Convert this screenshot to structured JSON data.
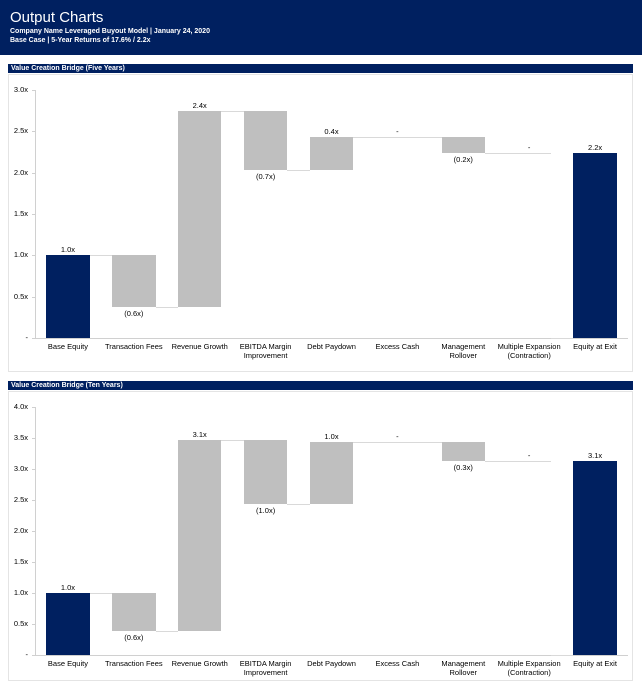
{
  "header": {
    "title": "Output Charts",
    "subtitle": "Company Name Leveraged Buyout Model | January 24, 2020",
    "subtitle2": "Base Case | 5-Year Returns of 17.6% / 2.2x"
  },
  "chart_data": [
    {
      "type": "waterfall",
      "title": "Value Creation Bridge (Five Years)",
      "categories": [
        "Base Equity",
        "Transaction Fees",
        "Revenue Growth",
        "EBITDA Margin Improvement",
        "Debt Paydown",
        "Excess Cash",
        "Management Rollover",
        "Multiple Expansion (Contraction)",
        "Equity at Exit"
      ],
      "measure": [
        "absolute",
        "relative",
        "relative",
        "relative",
        "relative",
        "relative",
        "relative",
        "relative",
        "total"
      ],
      "values": [
        1.0,
        -0.62,
        2.37,
        -0.72,
        0.4,
        0,
        -0.19,
        0,
        2.24
      ],
      "value_labels": [
        "1.0x",
        "(0.6x)",
        "2.4x",
        "(0.7x)",
        "0.4x",
        "-",
        "(0.2x)",
        "-",
        "2.2x"
      ],
      "colors": [
        "#002060",
        "#bfbfbf",
        "#bfbfbf",
        "#bfbfbf",
        "#bfbfbf",
        "#bfbfbf",
        "#bfbfbf",
        "#bfbfbf",
        "#002060"
      ],
      "ylim": [
        0,
        3
      ],
      "yticks": [
        {
          "value": 0,
          "label": "-"
        },
        {
          "value": 0.5,
          "label": "0.5x"
        },
        {
          "value": 1,
          "label": "1.0x"
        },
        {
          "value": 1.5,
          "label": "1.5x"
        },
        {
          "value": 2,
          "label": "2.0x"
        },
        {
          "value": 2.5,
          "label": "2.5x"
        },
        {
          "value": 3,
          "label": "3.0x"
        }
      ]
    },
    {
      "type": "waterfall",
      "title": "Value Creation Bridge (Ten Years)",
      "categories": [
        "Base Equity",
        "Transaction Fees",
        "Revenue Growth",
        "EBITDA Margin Improvement",
        "Debt Paydown",
        "Excess Cash",
        "Management Rollover",
        "Multiple Expansion (Contraction)",
        "Equity at Exit"
      ],
      "measure": [
        "absolute",
        "relative",
        "relative",
        "relative",
        "relative",
        "relative",
        "relative",
        "relative",
        "total"
      ],
      "values": [
        1.0,
        -0.62,
        3.08,
        -1.02,
        1.0,
        0,
        -0.31,
        0,
        3.13
      ],
      "value_labels": [
        "1.0x",
        "(0.6x)",
        "3.1x",
        "(1.0x)",
        "1.0x",
        "-",
        "(0.3x)",
        "-",
        "3.1x"
      ],
      "colors": [
        "#002060",
        "#bfbfbf",
        "#bfbfbf",
        "#bfbfbf",
        "#bfbfbf",
        "#bfbfbf",
        "#bfbfbf",
        "#bfbfbf",
        "#002060"
      ],
      "ylim": [
        0,
        4
      ],
      "yticks": [
        {
          "value": 0,
          "label": "-"
        },
        {
          "value": 0.5,
          "label": "0.5x"
        },
        {
          "value": 1,
          "label": "1.0x"
        },
        {
          "value": 1.5,
          "label": "1.5x"
        },
        {
          "value": 2,
          "label": "2.0x"
        },
        {
          "value": 2.5,
          "label": "2.5x"
        },
        {
          "value": 3,
          "label": "3.0x"
        },
        {
          "value": 3.5,
          "label": "3.5x"
        },
        {
          "value": 4,
          "label": "4.0x"
        }
      ]
    }
  ]
}
